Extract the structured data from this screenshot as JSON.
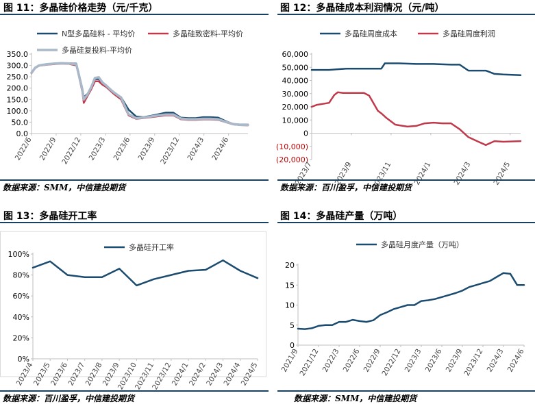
{
  "colors": {
    "navy": "#1b4b6e",
    "red": "#c0394b",
    "grey": "#a9b9c9",
    "axis": "#bfbfbf",
    "bar": "#1b3f5e"
  },
  "panels": [
    {
      "title": "图 11：多晶硅价格走势（元/千克）",
      "source": "数据来源：SMM，中信建投期货",
      "chart_data": {
        "type": "line",
        "title": "",
        "categories": [
          "2022/6",
          "2022/9",
          "2022/12",
          "2023/3",
          "2023/6",
          "2023/9",
          "2023/12",
          "2024/3",
          "2024/6"
        ],
        "y_tick_labels": [
          "0.0",
          "50.0",
          "100.0",
          "150.0",
          "200.0",
          "250.0",
          "300.0",
          "350.0"
        ],
        "ylim": [
          0,
          350
        ],
        "xlim": [
          0,
          29
        ],
        "series": [
          {
            "name": "N型多晶硅料 - 平均价",
            "color": "#1b4b6e",
            "width": 2.5,
            "x": [
              0,
              0.5,
              1,
              2,
              3,
              4,
              5,
              6,
              6.3,
              6.8,
              7,
              7.5,
              8,
              8.5,
              9,
              9.5,
              10,
              10.5,
              11,
              12,
              13,
              14,
              15,
              16,
              17,
              18,
              19,
              20,
              21,
              22,
              23,
              24,
              25,
              26,
              27,
              28,
              29
            ],
            "values": [
              270,
              290,
              300,
              305,
              308,
              310,
              310,
              308,
              270,
              200,
              160,
              175,
              200,
              240,
              240,
              220,
              210,
              195,
              180,
              160,
              105,
              75,
              72,
              78,
              85,
              92,
              92,
              70,
              68,
              68,
              72,
              72,
              70,
              55,
              42,
              40,
              40
            ]
          },
          {
            "name": "多晶硅致密料-平均价",
            "color": "#c0394b",
            "width": 2.5,
            "x": [
              0,
              0.5,
              1,
              2,
              3,
              4,
              5,
              6,
              6.3,
              6.8,
              7,
              7.5,
              8,
              8.5,
              9,
              9.5,
              10,
              10.5,
              11,
              12,
              13,
              14,
              15,
              16,
              17,
              18,
              19,
              20,
              21,
              22,
              23,
              24,
              25,
              26,
              27,
              28,
              29
            ],
            "values": [
              265,
              288,
              298,
              303,
              306,
              308,
              307,
              300,
              260,
              185,
              135,
              165,
              195,
              230,
              230,
              215,
              205,
              190,
              175,
              150,
              80,
              65,
              68,
              72,
              76,
              80,
              80,
              63,
              60,
              60,
              62,
              62,
              60,
              50,
              40,
              37,
              36
            ]
          },
          {
            "name": "多晶硅复投料-平均价",
            "color": "#a9b9c9",
            "width": 3.5,
            "x": [
              0,
              0.5,
              1,
              2,
              3,
              4,
              5,
              6,
              6.3,
              6.8,
              7,
              7.5,
              8,
              8.5,
              9,
              9.5,
              10,
              10.5,
              11,
              12,
              13,
              14,
              15,
              16,
              17,
              18,
              19,
              20,
              21,
              22,
              23,
              24,
              25,
              26,
              27,
              28,
              29
            ],
            "values": [
              268,
              290,
              300,
              305,
              308,
              310,
              309,
              305,
              265,
              195,
              150,
              172,
              205,
              245,
              248,
              225,
              212,
              196,
              182,
              158,
              85,
              68,
              70,
              75,
              80,
              84,
              84,
              66,
              63,
              63,
              65,
              65,
              63,
              52,
              42,
              38,
              38
            ]
          }
        ]
      }
    },
    {
      "title": "图 12：多晶硅成本利润情况（元/吨）",
      "source": "数据来源：百川盈孚，中信建投期货",
      "chart_data": {
        "type": "line",
        "title": "",
        "categories": [
          "2023/7",
          "2023/9",
          "2023/11",
          "2024/1",
          "2024/3",
          "2024/5"
        ],
        "y_tick_labels": [
          "(20,000)",
          "(10,000)",
          "0",
          "10,000",
          "20,000",
          "30,000",
          "40,000",
          "50,000",
          "60,000"
        ],
        "ylim": [
          -20000,
          60000
        ],
        "xlim": [
          0,
          12
        ],
        "series": [
          {
            "name": "多晶硅周度成本",
            "color": "#1b4b6e",
            "width": 2.5,
            "x": [
              0,
              1,
              1.5,
              2,
              3,
              4,
              4.2,
              5,
              6,
              7,
              8,
              8.5,
              9,
              9.5,
              10,
              10.5,
              11,
              12
            ],
            "values": [
              48000,
              48000,
              48500,
              49000,
              49000,
              49000,
              53000,
              53000,
              52500,
              52500,
              52000,
              52000,
              47500,
              47500,
              47500,
              45000,
              44500,
              44000
            ]
          },
          {
            "name": "多晶硅周度利润",
            "color": "#c0394b",
            "width": 2.5,
            "x": [
              0,
              0.3,
              1,
              1.3,
              1.5,
              1.8,
              2.2,
              3,
              3.3,
              3.8,
              4,
              4.3,
              4.8,
              5,
              5.5,
              6,
              6.5,
              7,
              7.5,
              8,
              8.5,
              9,
              9.5,
              10,
              10.5,
              11,
              12
            ],
            "values": [
              20000,
              21500,
              23000,
              29000,
              31000,
              30500,
              30500,
              30500,
              28500,
              17000,
              15000,
              11500,
              6500,
              6000,
              5000,
              5500,
              7500,
              8000,
              7500,
              7500,
              3000,
              -3000,
              -6000,
              -9000,
              -6000,
              -6500,
              -6000
            ]
          }
        ]
      }
    },
    {
      "title": "图 13：多晶硅开工率",
      "source": "数据来源：百川盈孚，中信建投期货",
      "chart_data": {
        "type": "line",
        "title": "",
        "categories": [
          "2023/4",
          "2023/5",
          "2023/6",
          "2023/7",
          "2023/8",
          "2023/9",
          "2023/10",
          "2023/11",
          "2023/12",
          "2024/1",
          "2024/2",
          "2024/3",
          "2024/4",
          "2024/5"
        ],
        "y_tick_labels": [
          "0%",
          "20%",
          "40%",
          "60%",
          "80%",
          "100%"
        ],
        "ylim": [
          0,
          100
        ],
        "xlim": [
          0,
          13
        ],
        "series": [
          {
            "name": "多晶硅开工率",
            "color": "#1b4b6e",
            "width": 2.5,
            "x": [
              0,
              1,
              2,
              3,
              4,
              5,
              6,
              7,
              8,
              9,
              10,
              11,
              12,
              13
            ],
            "values": [
              87,
              93,
              80,
              78,
              78,
              86,
              70,
              76,
              80,
              84,
              85,
              94,
              84,
              77
            ]
          }
        ]
      }
    },
    {
      "title": "图 14：多晶硅产量（万吨）",
      "source": "数据来源：SMM，中信建投期货",
      "chart_data": {
        "type": "line",
        "title": "",
        "categories": [
          "2021/9",
          "2021/12",
          "2022/3",
          "2022/6",
          "2022/9",
          "2022/12",
          "2023/3",
          "2023/6",
          "2023/9",
          "2023/12",
          "2024/3",
          "2024/6"
        ],
        "y_tick_labels": [
          "0",
          "5",
          "10",
          "15",
          "20"
        ],
        "ylim": [
          0,
          20
        ],
        "xlim": [
          0,
          33
        ],
        "series": [
          {
            "name": "多晶硅月度产量（万吨）",
            "color": "#1b4b6e",
            "width": 2.5,
            "x": [
              0,
              1,
              2,
              3,
              4,
              5,
              6,
              7,
              8,
              9,
              10,
              11,
              12,
              13,
              14,
              15,
              16,
              17,
              18,
              19,
              20,
              21,
              22,
              23,
              24,
              25,
              26,
              27,
              28,
              29,
              30,
              31,
              32,
              33
            ],
            "values": [
              4.1,
              4.0,
              4.2,
              4.8,
              5.0,
              5.0,
              5.8,
              5.8,
              6.3,
              6.0,
              5.8,
              6.2,
              7.5,
              8.2,
              9.0,
              9.5,
              10.0,
              10.0,
              11.0,
              11.2,
              11.5,
              12.0,
              12.5,
              13.0,
              13.6,
              14.5,
              15.0,
              15.5,
              16.0,
              17.0,
              18.0,
              17.8,
              15.0,
              15.0
            ]
          }
        ]
      }
    }
  ]
}
